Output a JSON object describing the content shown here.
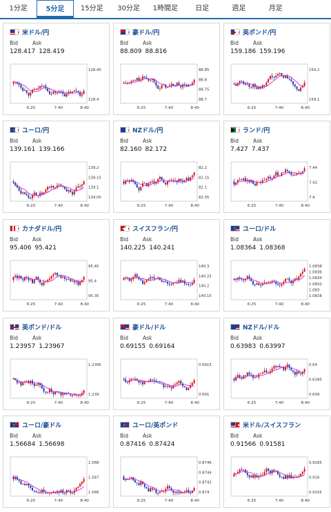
{
  "tabs": [
    "1分足",
    "5分足",
    "15分足",
    "30分足",
    "1時間足",
    "日足",
    "週足",
    "月足"
  ],
  "active_tab": 1,
  "bid_label": "Bid",
  "ask_label": "Ask",
  "time_labels": [
    "6:25",
    "7:40",
    "8:40"
  ],
  "colors": {
    "up": "#d11111",
    "down": "#1d3ba8",
    "ma": "#d024d0",
    "accent": "#1f6bb0"
  },
  "cards": [
    {
      "name": "米ドル/円",
      "bid": "128.417",
      "ask": "128.419",
      "flag": "us-jp",
      "yticks": [
        "128.45",
        "128.4"
      ]
    },
    {
      "name": "豪ドル/円",
      "bid": "88.809",
      "ask": "88.816",
      "flag": "au-jp",
      "yticks": [
        "88.85",
        "88.8",
        "88.75",
        "88.7"
      ]
    },
    {
      "name": "英ポンド/円",
      "bid": "159.186",
      "ask": "159.196",
      "flag": "gb-jp",
      "yticks": [
        "159.2",
        "159.1"
      ]
    },
    {
      "name": "ユーロ/円",
      "bid": "139.161",
      "ask": "139.166",
      "flag": "eu-jp",
      "yticks": [
        "139.2",
        "139.15",
        "139.1",
        "139.05"
      ]
    },
    {
      "name": "NZドル/円",
      "bid": "82.160",
      "ask": "82.172",
      "flag": "nz-jp",
      "yticks": [
        "82.2",
        "82.15",
        "82.1",
        "82.05"
      ]
    },
    {
      "name": "ランド/円",
      "bid": "7.427",
      "ask": "7.437",
      "flag": "za-jp",
      "yticks": [
        "7.44",
        "7.42",
        "7.4"
      ]
    },
    {
      "name": "カナダドル/円",
      "bid": "95.406",
      "ask": "95.421",
      "flag": "ca-jp",
      "yticks": [
        "95.45",
        "95.4",
        "95.35"
      ]
    },
    {
      "name": "スイスフラン/円",
      "bid": "140.225",
      "ask": "140.241",
      "flag": "ch-jp",
      "yticks": [
        "140.3",
        "140.25",
        "140.2",
        "140.15"
      ]
    },
    {
      "name": "ユーロ/ドル",
      "bid": "1.08364",
      "ask": "1.08368",
      "flag": "eu-us",
      "yticks": [
        "1.0838",
        "1.0836",
        "1.0834",
        "1.0832",
        "1.083",
        "1.0828"
      ]
    },
    {
      "name": "英ポンド/ドル",
      "bid": "1.23957",
      "ask": "1.23967",
      "flag": "gb-us",
      "yticks": [
        "1.2395",
        "1.239"
      ]
    },
    {
      "name": "豪ドル/ドル",
      "bid": "0.69155",
      "ask": "0.69164",
      "flag": "au-us",
      "yticks": [
        "0.6915",
        "0.691"
      ]
    },
    {
      "name": "NZドル/ドル",
      "bid": "0.63983",
      "ask": "0.63997",
      "flag": "nz-us",
      "yticks": [
        "0.64",
        "0.6395",
        "0.639"
      ]
    },
    {
      "name": "ユーロ/豪ドル",
      "bid": "1.56684",
      "ask": "1.56698",
      "flag": "eu-au",
      "yticks": [
        "1.568",
        "1.567",
        "1.566"
      ]
    },
    {
      "name": "ユーロ/英ポンド",
      "bid": "0.87416",
      "ask": "0.87424",
      "flag": "eu-gb",
      "yticks": [
        "0.8746",
        "0.8744",
        "0.8742",
        "0.874"
      ]
    },
    {
      "name": "米ドル/スイスフラン",
      "bid": "0.91566",
      "ask": "0.91581",
      "flag": "us-ch",
      "yticks": [
        "0.9165",
        "0.916",
        "0.9155"
      ]
    }
  ]
}
